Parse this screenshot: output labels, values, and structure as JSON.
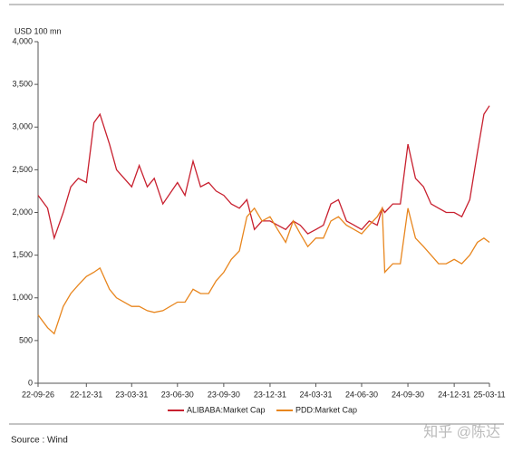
{
  "chart_data": {
    "type": "line",
    "y_unit_label": "USD 100 mn",
    "x": [
      "22-09-26",
      "22-10-15",
      "22-10-28",
      "22-11-15",
      "22-11-30",
      "22-12-15",
      "22-12-31",
      "23-01-15",
      "23-01-27",
      "23-02-15",
      "23-03-01",
      "23-03-31",
      "23-04-15",
      "23-05-01",
      "23-05-15",
      "23-06-01",
      "23-06-30",
      "23-07-15",
      "23-07-31",
      "23-08-15",
      "23-08-31",
      "23-09-15",
      "23-09-30",
      "23-10-15",
      "23-10-31",
      "23-11-15",
      "23-11-30",
      "23-12-15",
      "23-12-31",
      "24-01-15",
      "24-01-31",
      "24-02-15",
      "24-02-29",
      "24-03-15",
      "24-03-31",
      "24-04-15",
      "24-04-30",
      "24-05-15",
      "24-05-31",
      "24-06-15",
      "24-06-30",
      "24-07-15",
      "24-07-31",
      "24-08-10",
      "24-08-15",
      "24-08-31",
      "24-09-15",
      "24-09-30",
      "24-10-15",
      "24-10-31",
      "24-11-15",
      "24-11-30",
      "24-12-15",
      "24-12-31",
      "25-01-15",
      "25-01-31",
      "25-02-15",
      "25-02-28",
      "25-03-11"
    ],
    "series": [
      {
        "name": "ALIBABA:Market Cap",
        "color": "#c8202f",
        "values": [
          2200,
          2050,
          1700,
          2000,
          2300,
          2400,
          2350,
          3050,
          3150,
          2800,
          2500,
          2300,
          2550,
          2300,
          2400,
          2100,
          2350,
          2200,
          2600,
          2300,
          2350,
          2250,
          2200,
          2100,
          2050,
          2150,
          1800,
          1900,
          1900,
          1850,
          1800,
          1900,
          1850,
          1750,
          1800,
          1850,
          2100,
          2150,
          1900,
          1850,
          1800,
          1900,
          1850,
          2050,
          2000,
          2100,
          2100,
          2800,
          2400,
          2300,
          2100,
          2050,
          2000,
          2000,
          1950,
          2150,
          2700,
          3150,
          3250
        ]
      },
      {
        "name": "PDD:Market Cap",
        "color": "#e8861e",
        "values": [
          800,
          650,
          580,
          900,
          1050,
          1150,
          1250,
          1300,
          1350,
          1100,
          1000,
          900,
          900,
          850,
          830,
          850,
          950,
          950,
          1100,
          1050,
          1050,
          1200,
          1300,
          1450,
          1550,
          1950,
          2050,
          1900,
          1950,
          1800,
          1650,
          1900,
          1750,
          1600,
          1700,
          1700,
          1900,
          1950,
          1850,
          1800,
          1750,
          1850,
          1950,
          2050,
          1300,
          1400,
          1400,
          2050,
          1700,
          1600,
          1500,
          1400,
          1400,
          1450,
          1400,
          1500,
          1650,
          1700,
          1650
        ]
      }
    ],
    "xlim": [
      "22-09-26",
      "25-03-11"
    ],
    "xticks": [
      "22-09-26",
      "22-12-31",
      "23-03-31",
      "23-06-30",
      "23-09-30",
      "23-12-31",
      "24-03-31",
      "24-06-30",
      "24-09-30",
      "24-12-31",
      "25-03-11"
    ],
    "ylim": [
      0,
      4000
    ],
    "yticks": [
      0,
      500,
      {
        "value": 1000,
        "label": "1,000"
      },
      {
        "value": 1500,
        "label": "1,500"
      },
      {
        "value": 2000,
        "label": "2,000"
      },
      {
        "value": 2500,
        "label": "2,500"
      },
      {
        "value": 3000,
        "label": "3,000"
      },
      {
        "value": 3500,
        "label": "3,500"
      },
      {
        "value": 4000,
        "label": "4,000"
      }
    ],
    "source": "Source : Wind",
    "watermark": "知乎 @陈达"
  }
}
